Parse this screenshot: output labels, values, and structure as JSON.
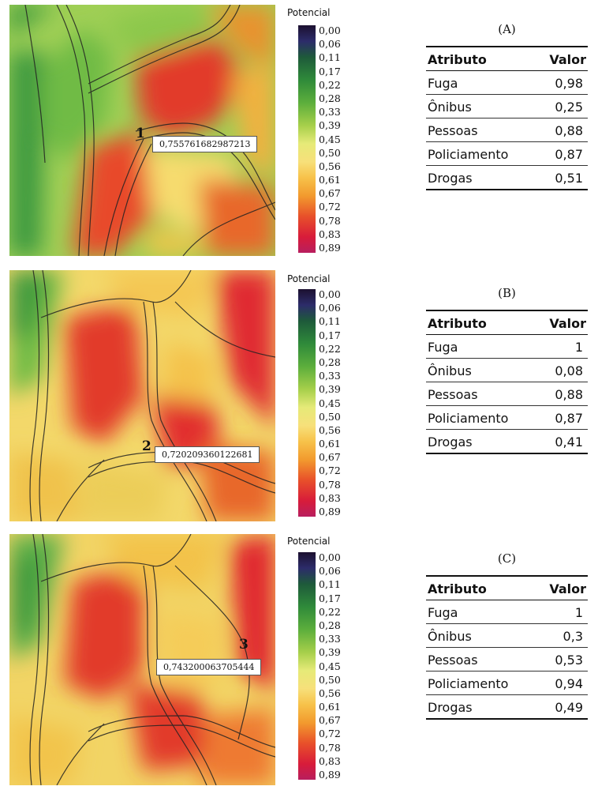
{
  "legend": {
    "title": "Potencial",
    "ticks": [
      "0,00",
      "0,06",
      "0,11",
      "0,17",
      "0,22",
      "0,28",
      "0,33",
      "0,39",
      "0,45",
      "0,50",
      "0,56",
      "0,61",
      "0,67",
      "0,72",
      "0,78",
      "0,83",
      "0,89"
    ]
  },
  "table_header": {
    "attr": "Atributo",
    "val": "Valor"
  },
  "panels": [
    {
      "label": "(A)",
      "point_num": "1",
      "point_value": "0,755761682987213",
      "rows": [
        {
          "attr": "Fuga",
          "val": "0,98"
        },
        {
          "attr": "Ônibus",
          "val": "0,25"
        },
        {
          "attr": "Pessoas",
          "val": "0,88"
        },
        {
          "attr": "Policiamento",
          "val": "0,87"
        },
        {
          "attr": "Drogas",
          "val": "0,51"
        }
      ]
    },
    {
      "label": "(B)",
      "point_num": "2",
      "point_value": "0,720209360122681",
      "rows": [
        {
          "attr": "Fuga",
          "val": "1"
        },
        {
          "attr": "Ônibus",
          "val": "0,08"
        },
        {
          "attr": "Pessoas",
          "val": "0,88"
        },
        {
          "attr": "Policiamento",
          "val": "0,87"
        },
        {
          "attr": "Drogas",
          "val": "0,41"
        }
      ]
    },
    {
      "label": "(C)",
      "point_num": "3",
      "point_value": "0,743200063705444",
      "rows": [
        {
          "attr": "Fuga",
          "val": "1"
        },
        {
          "attr": "Ônibus",
          "val": "0,3"
        },
        {
          "attr": "Pessoas",
          "val": "0,53"
        },
        {
          "attr": "Policiamento",
          "val": "0,94"
        },
        {
          "attr": "Drogas",
          "val": "0,49"
        }
      ]
    }
  ],
  "colors": {
    "scale": [
      "#1c1030",
      "#2c2c6a",
      "#1e5a3a",
      "#2f8a3a",
      "#5cae3c",
      "#a6cf4a",
      "#e6ea78",
      "#f7e07a",
      "#f7c24a",
      "#f29a2e",
      "#e8502a",
      "#d81c3a",
      "#b81e5e"
    ]
  }
}
